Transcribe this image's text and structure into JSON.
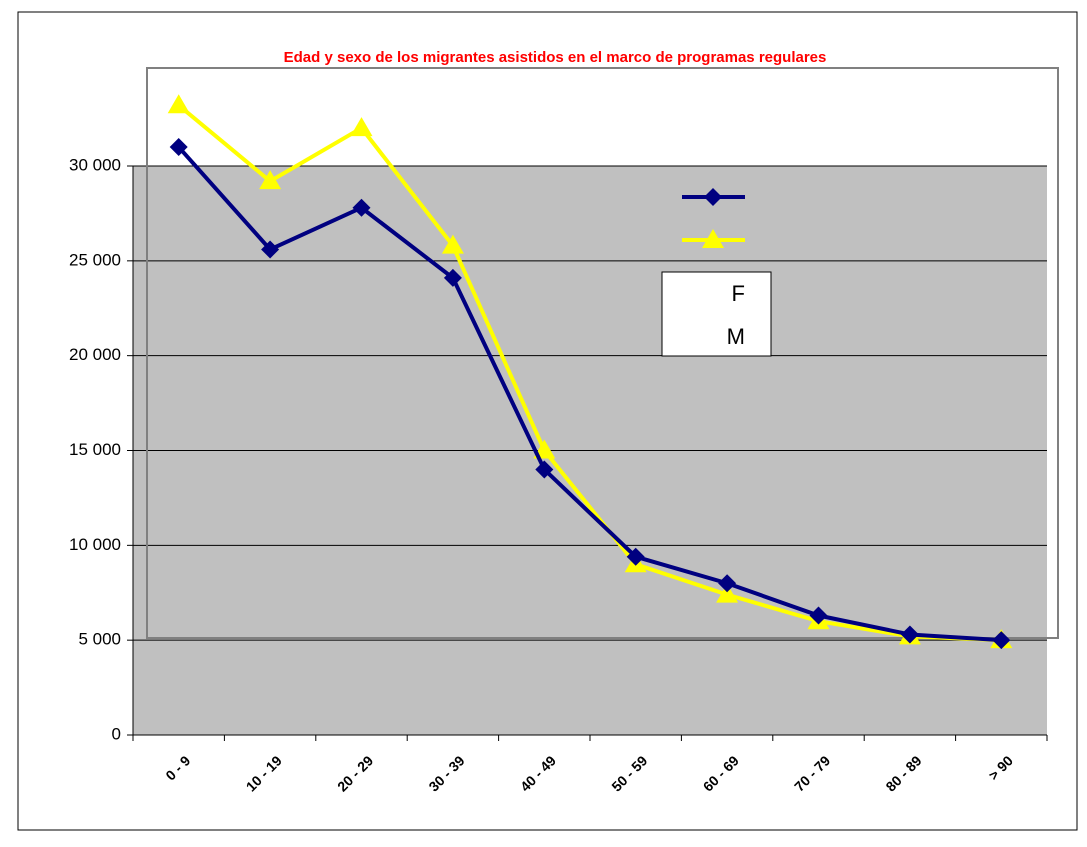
{
  "chart_data": {
    "type": "line",
    "title": "Edad y sexo de los migrantes asistidos en el marco de programas regulares",
    "categories": [
      "0 - 9",
      "10 - 19",
      "20 - 29",
      "30 - 39",
      "40 - 49",
      "50 - 59",
      "60 - 69",
      "70 - 79",
      "80 - 89",
      "> 90"
    ],
    "series": [
      {
        "name": "F",
        "color": "#000080",
        "marker": "diamond",
        "values": [
          31000,
          25600,
          27800,
          24100,
          14000,
          9400,
          8000,
          6300,
          5300,
          5000
        ]
      },
      {
        "name": "M",
        "color": "#ffff00",
        "marker": "triangle",
        "values": [
          33200,
          29200,
          32000,
          25800,
          15000,
          9000,
          7400,
          6000,
          5200,
          5000
        ]
      }
    ],
    "ylim": [
      0,
      30000
    ],
    "yticks": [
      0,
      {
        "value": 5000,
        "label": "5 000"
      },
      {
        "value": 10000,
        "label": "10 000"
      },
      {
        "value": 15000,
        "label": "15 000"
      },
      {
        "value": 20000,
        "label": "20 000"
      },
      {
        "value": 25000,
        "label": "25 000"
      },
      {
        "value": 30000,
        "label": "30 000"
      }
    ],
    "grid": true
  }
}
